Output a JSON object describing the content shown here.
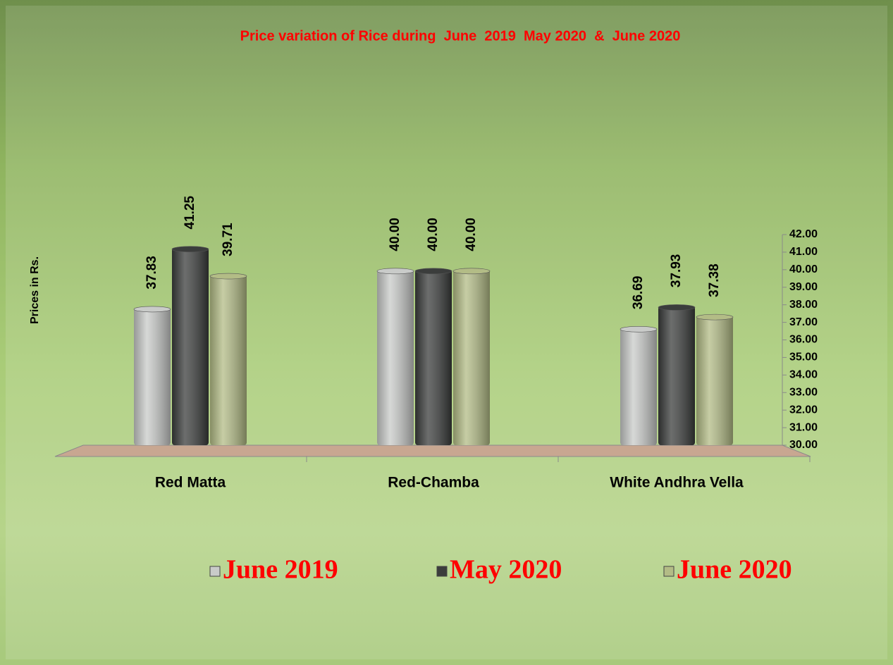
{
  "chart_data": {
    "type": "bar",
    "title": "Price variation of Rice during  June  2019  May 2020  &  June 2020",
    "y_label": "Prices in Rs.",
    "categories": [
      "Red Matta",
      "Red-Chamba",
      "White Andhra Vella"
    ],
    "series": [
      {
        "name": "June 2019",
        "color": "#c9cbc9",
        "values": [
          37.83,
          40,
          36.69
        ],
        "value_labels": [
          "37.83",
          "40.00",
          "36.69"
        ]
      },
      {
        "name": "May 2020",
        "color": "#3b3d3c",
        "values": [
          41.25,
          40,
          37.93
        ],
        "value_labels": [
          "41.25",
          "40.00",
          "37.93"
        ]
      },
      {
        "name": "June 2020",
        "color": "#b3bc86",
        "values": [
          39.71,
          40,
          37.38
        ],
        "value_labels": [
          "39.71",
          "40.00",
          "37.38"
        ]
      }
    ],
    "ylim": [
      30,
      42
    ],
    "yticks": [
      {
        "value": 30,
        "label": "30.00"
      },
      {
        "value": 31,
        "label": "31.00"
      },
      {
        "value": 32,
        "label": "32.00"
      },
      {
        "value": 33,
        "label": "33.00"
      },
      {
        "value": 34,
        "label": "34.00"
      },
      {
        "value": 35,
        "label": "35.00"
      },
      {
        "value": 36,
        "label": "36.00"
      },
      {
        "value": 37,
        "label": "37.00"
      },
      {
        "value": 38,
        "label": "38.00"
      },
      {
        "value": 39,
        "label": "39.00"
      },
      {
        "value": 40,
        "label": "40.00"
      },
      {
        "value": 41,
        "label": "41.00"
      },
      {
        "value": 42,
        "label": "42.00"
      }
    ],
    "legend_position": "bottom"
  }
}
